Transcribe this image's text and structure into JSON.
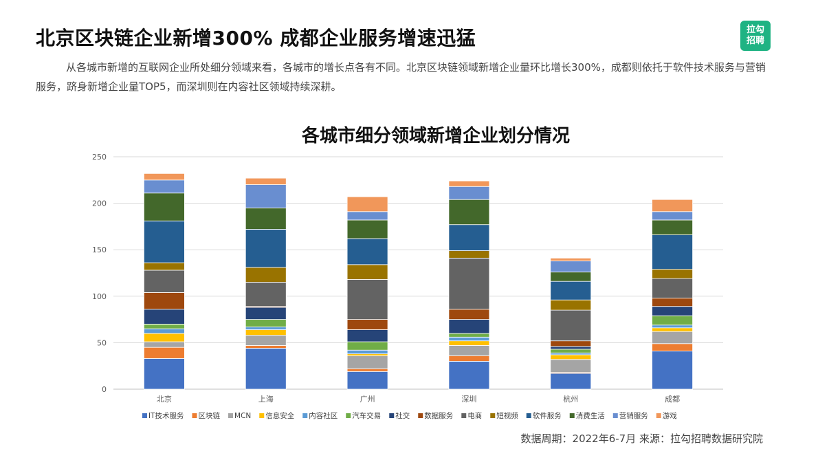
{
  "header": {
    "title": "北京区块链企业新增300% 成都企业服务增速迅猛",
    "logo_line1": "拉勾",
    "logo_line2": "招聘"
  },
  "intro": {
    "text": "从各城市新增的互联网企业所处细分领域来看，各城市的增长点各有不同。北京区块链领域新增企业量环比增长300%，成都则依托于软件技术服务与营销服务，跻身新增企业量TOP5，而深圳则在内容社区领域持续深耕。"
  },
  "footer": {
    "text": "数据周期：2022年6-7月  来源：拉勾招聘数据研究院"
  },
  "chart_data": {
    "type": "bar",
    "stacked": true,
    "title": "各城市细分领域新增企业划分情况",
    "xlabel": "",
    "ylabel": "",
    "ylim": [
      0,
      250
    ],
    "yticks": [
      0,
      50,
      100,
      150,
      200,
      250
    ],
    "grid": true,
    "legend_position": "bottom",
    "categories": [
      "北京",
      "上海",
      "广州",
      "深圳",
      "杭州",
      "成都"
    ],
    "series": [
      {
        "name": "IT技术服务",
        "color": "#4472c4",
        "values": [
          33,
          44,
          19,
          30,
          17,
          41
        ]
      },
      {
        "name": "区块链",
        "color": "#ed7d31",
        "values": [
          12,
          3,
          3,
          6,
          1,
          8
        ]
      },
      {
        "name": "MCN",
        "color": "#a5a5a5",
        "values": [
          6,
          11,
          14,
          11,
          14,
          13
        ]
      },
      {
        "name": "信息安全",
        "color": "#ffc000",
        "values": [
          9,
          6,
          2,
          5,
          5,
          4
        ]
      },
      {
        "name": "内容社区",
        "color": "#5b9bd5",
        "values": [
          5,
          3,
          4,
          4,
          2,
          3
        ]
      },
      {
        "name": "汽车交易",
        "color": "#70ad47",
        "values": [
          5,
          8,
          9,
          4,
          4,
          10
        ]
      },
      {
        "name": "社交",
        "color": "#264478",
        "values": [
          16,
          13,
          13,
          15,
          3,
          10
        ]
      },
      {
        "name": "数据服务",
        "color": "#9e480e",
        "values": [
          18,
          1,
          11,
          11,
          6,
          9
        ]
      },
      {
        "name": "电商",
        "color": "#636363",
        "values": [
          24,
          26,
          43,
          55,
          33,
          21
        ]
      },
      {
        "name": "短视频",
        "color": "#997300",
        "values": [
          8,
          16,
          16,
          8,
          11,
          10
        ]
      },
      {
        "name": "软件服务",
        "color": "#255e91",
        "values": [
          45,
          41,
          28,
          28,
          20,
          37
        ]
      },
      {
        "name": "消费生活",
        "color": "#43682b",
        "values": [
          30,
          23,
          20,
          27,
          10,
          16
        ]
      },
      {
        "name": "营销服务",
        "color": "#698ed0",
        "values": [
          14,
          25,
          9,
          14,
          12,
          9
        ]
      },
      {
        "name": "游戏",
        "color": "#f1975a",
        "values": [
          7,
          7,
          16,
          6,
          3,
          13
        ]
      }
    ]
  }
}
